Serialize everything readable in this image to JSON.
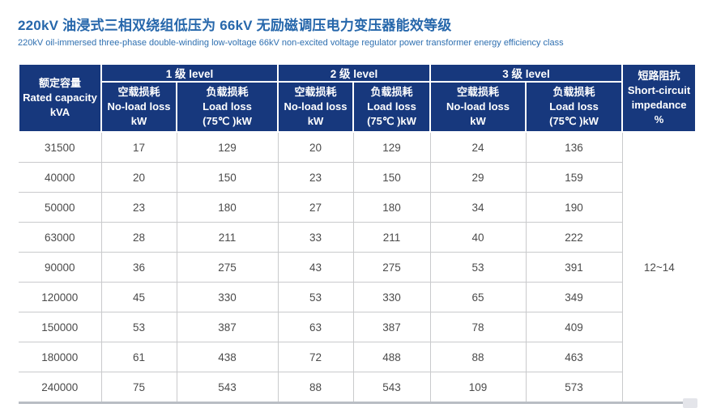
{
  "page": {
    "title": "220kV 油浸式三相双绕组低压为 66kV 无励磁调压电力变压器能效等级",
    "subtitle": "220kV oil-immersed three-phase double-winding low-voltage 66kV non-excited voltage regulator power transformer energy efficiency class"
  },
  "colors": {
    "header_bg": "#17387d",
    "header_text": "#ffffff",
    "title_blue": "#2667ab",
    "subtitle_blue": "#2e6fb0",
    "row_border": "#c9cacc",
    "bottom_bar": "#b9bdc4",
    "cell_text": "#4b4b4b"
  },
  "table": {
    "capacity_header": {
      "zh": "额定容量",
      "en": "Rated capacity",
      "unit": "kVA"
    },
    "groups": [
      {
        "label": "1 级 level"
      },
      {
        "label": "2 级 level"
      },
      {
        "label": "3 级 level"
      }
    ],
    "no_load_header": {
      "zh": "空载损耗",
      "en": "No-load loss",
      "unit": "kW"
    },
    "load_header": {
      "zh": "负载损耗",
      "en": "Load loss",
      "unit": "(75℃ )kW"
    },
    "impedance_header": {
      "zh": "短路阻抗",
      "en_line1": "Short-circuit",
      "en_line2": "impedance",
      "unit": "%"
    },
    "impedance_value": "12~14",
    "rows": [
      {
        "capacity": "31500",
        "values": [
          "17",
          "129",
          "20",
          "129",
          "24",
          "136"
        ]
      },
      {
        "capacity": "40000",
        "values": [
          "20",
          "150",
          "23",
          "150",
          "29",
          "159"
        ]
      },
      {
        "capacity": "50000",
        "values": [
          "23",
          "180",
          "27",
          "180",
          "34",
          "190"
        ]
      },
      {
        "capacity": "63000",
        "values": [
          "28",
          "211",
          "33",
          "211",
          "40",
          "222"
        ]
      },
      {
        "capacity": "90000",
        "values": [
          "36",
          "275",
          "43",
          "275",
          "53",
          "391"
        ]
      },
      {
        "capacity": "120000",
        "values": [
          "45",
          "330",
          "53",
          "330",
          "65",
          "349"
        ]
      },
      {
        "capacity": "150000",
        "values": [
          "53",
          "387",
          "63",
          "387",
          "78",
          "409"
        ]
      },
      {
        "capacity": "180000",
        "values": [
          "61",
          "438",
          "72",
          "488",
          "88",
          "463"
        ]
      },
      {
        "capacity": "240000",
        "values": [
          "75",
          "543",
          "88",
          "543",
          "109",
          "573"
        ]
      }
    ]
  }
}
